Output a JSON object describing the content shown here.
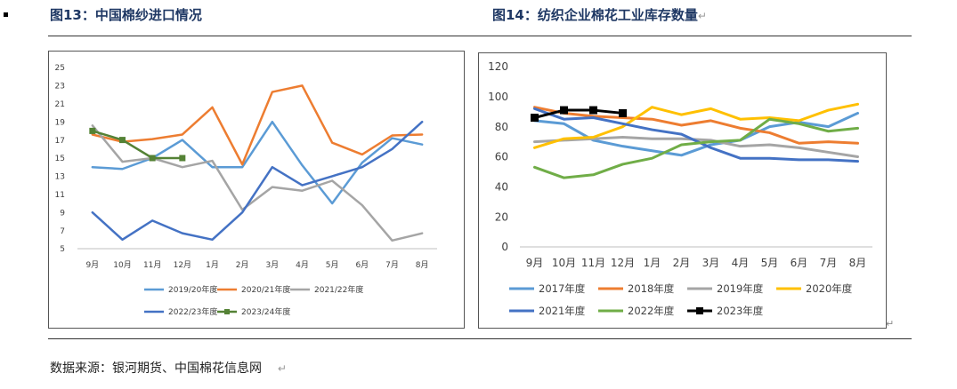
{
  "page": {
    "left_title": "图13：中国棉纱进口情况",
    "right_title": "图14：纺织企业棉花工业库存数量",
    "para_mark": "↵",
    "source": "数据来源：银河期货、中国棉花信息网",
    "source_mark": "↵"
  },
  "chart_data": [
    {
      "type": "line",
      "title": "",
      "xlabel": "",
      "ylabel": "",
      "categories": [
        "9月",
        "10月",
        "11月",
        "12月",
        "1月",
        "2月",
        "3月",
        "4月",
        "5月",
        "6月",
        "7月",
        "8月"
      ],
      "ylim": [
        5,
        25
      ],
      "yticks": [
        5,
        7,
        9,
        11,
        13,
        15,
        17,
        19,
        21,
        23,
        25
      ],
      "grid": false,
      "legend_position": "bottom",
      "series": [
        {
          "name": "2019/20年度",
          "color": "#5b9bd5",
          "values": [
            14,
            13.8,
            15,
            17,
            14,
            14,
            19,
            14.2,
            10,
            14.5,
            17.2,
            16.5
          ]
        },
        {
          "name": "2020/21年度",
          "color": "#ed7d31",
          "values": [
            17.6,
            16.8,
            17.1,
            17.6,
            20.6,
            14.3,
            22.3,
            23,
            16.7,
            15.4,
            17.5,
            17.6
          ]
        },
        {
          "name": "2021/22年度",
          "color": "#a5a5a5",
          "values": [
            18.6,
            14.6,
            15,
            14,
            14.7,
            9.3,
            11.8,
            11.4,
            12.5,
            9.8,
            5.9,
            6.7
          ]
        },
        {
          "name": "2022/23年度",
          "color": "#4472c4",
          "values": [
            9,
            6,
            8.1,
            6.7,
            6,
            9,
            14,
            12,
            13,
            14,
            16,
            19
          ]
        },
        {
          "name": "2023/24年度",
          "color": "#548235",
          "marker": "square",
          "values": [
            18,
            17,
            15,
            15,
            null,
            null,
            null,
            null,
            null,
            null,
            null,
            null
          ]
        }
      ]
    },
    {
      "type": "line",
      "title": "",
      "xlabel": "",
      "ylabel": "",
      "categories": [
        "9月",
        "10月",
        "11月",
        "12月",
        "1月",
        "2月",
        "3月",
        "4月",
        "5月",
        "6月",
        "7月",
        "8月"
      ],
      "ylim": [
        0,
        120
      ],
      "yticks": [
        0,
        20,
        40,
        60,
        80,
        100,
        120
      ],
      "grid": false,
      "legend_position": "bottom",
      "series": [
        {
          "name": "2017年度",
          "color": "#5b9bd5",
          "values": [
            84,
            82,
            71,
            67,
            64,
            61,
            68,
            71,
            80,
            83,
            80,
            89
          ]
        },
        {
          "name": "2018年度",
          "color": "#ed7d31",
          "values": [
            93,
            89,
            87,
            86,
            85,
            81,
            84,
            79,
            76,
            69,
            70,
            69
          ]
        },
        {
          "name": "2019年度",
          "color": "#a5a5a5",
          "values": [
            70,
            71,
            72,
            73,
            72,
            72,
            71,
            67,
            68,
            66,
            63,
            60
          ]
        },
        {
          "name": "2020年度",
          "color": "#ffc000",
          "values": [
            66,
            72,
            73,
            80,
            93,
            88,
            92,
            85,
            86,
            84,
            91,
            95
          ]
        },
        {
          "name": "2021年度",
          "color": "#4472c4",
          "values": [
            92,
            85,
            86,
            82,
            78,
            75,
            66,
            59,
            59,
            58,
            58,
            57
          ]
        },
        {
          "name": "2022年度",
          "color": "#70ad47",
          "values": [
            53,
            46,
            48,
            55,
            59,
            68,
            70,
            71,
            85,
            82,
            77,
            79
          ]
        },
        {
          "name": "2023年度",
          "color": "#000000",
          "marker": "square",
          "values": [
            86,
            91,
            91,
            89,
            null,
            null,
            null,
            null,
            null,
            null,
            null,
            null
          ]
        }
      ]
    }
  ]
}
